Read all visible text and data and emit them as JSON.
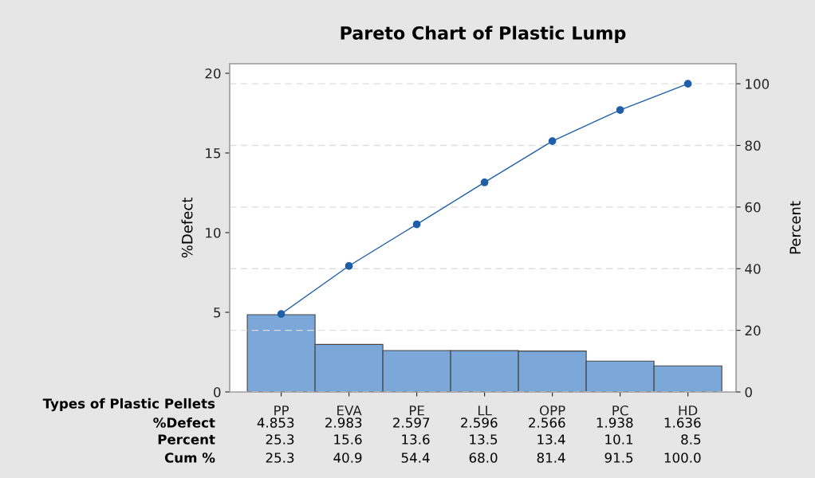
{
  "chart_data": {
    "type": "bar",
    "title": "Pareto Chart of Plastic Lump",
    "xlabel": "Types of Plastic Pellets",
    "ylabel": "%Defect",
    "y2label": "Percent",
    "categories": [
      "PP",
      "EVA",
      "PE",
      "LL",
      "OPP",
      "PC",
      "HD"
    ],
    "series": [
      {
        "color": "#7ba7d9",
        "values": [
          4.853,
          2.983,
          2.597,
          2.596,
          2.566,
          1.938,
          1.636
        ]
      },
      {
        "type": "line",
        "axis": "y2",
        "color": "#1f5fa8",
        "marker": "circle",
        "values": [
          25.3,
          40.9,
          54.4,
          68.0,
          81.4,
          91.5,
          100.0
        ]
      }
    ],
    "annotations": [
      "%Defect",
      "4.853",
      "2.983",
      "2.597",
      "2.596",
      "2.566",
      "1.938",
      "1.636",
      "Percent",
      "25.3",
      "15.6",
      "13.6",
      "13.5",
      "13.4",
      "10.1",
      "8.5",
      "Cum %",
      "25.3",
      "40.9",
      "54.4",
      "68.0",
      "81.4",
      "91.5",
      "100.0"
    ],
    "ylim": [
      0,
      20.6
    ],
    "yticks": [
      0,
      5,
      10,
      15,
      20
    ],
    "y2lim": [
      0,
      106.5
    ],
    "y2ticks": [
      0,
      20,
      40,
      60,
      80,
      100
    ],
    "grid": "y",
    "legend": false
  }
}
